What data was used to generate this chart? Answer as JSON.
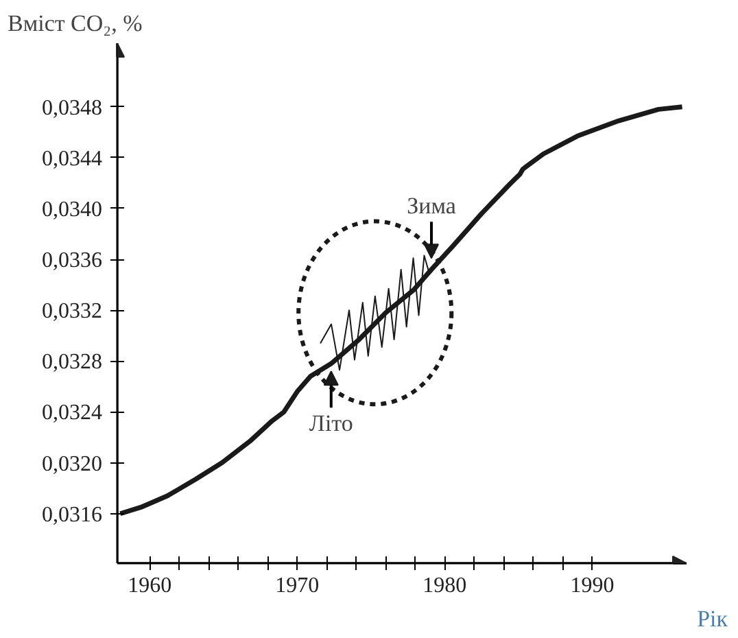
{
  "chart_data": {
    "type": "line",
    "ylabel": "Вміст CO₂, %",
    "xlabel": "Рік",
    "xlim": [
      1957.8,
      1996.4
    ],
    "ylim": [
      0.03121,
      0.0353
    ],
    "xticks": [
      1960,
      {
        "value": 1962,
        "label": null
      },
      {
        "value": 1964,
        "label": null
      },
      {
        "value": 1966,
        "label": null
      },
      {
        "value": 1968,
        "label": null
      },
      1970,
      {
        "value": 1972,
        "label": null
      },
      {
        "value": 1974,
        "label": null
      },
      {
        "value": 1976,
        "label": null
      },
      {
        "value": 1978,
        "label": null
      },
      1980,
      {
        "value": 1982,
        "label": null
      },
      {
        "value": 1984,
        "label": null
      },
      {
        "value": 1986,
        "label": null
      },
      {
        "value": 1988,
        "label": null
      },
      1990
    ],
    "yticks": [
      {
        "value": 0.0316,
        "label": "0,0316"
      },
      {
        "value": 0.032,
        "label": "0,0320"
      },
      {
        "value": 0.0324,
        "label": "0,0324"
      },
      {
        "value": 0.0328,
        "label": "0,0328"
      },
      {
        "value": 0.0332,
        "label": "0,0332"
      },
      {
        "value": 0.0336,
        "label": "0,0336"
      },
      {
        "value": 0.034,
        "label": "0,0340"
      },
      {
        "value": 0.0344,
        "label": "0,0344"
      },
      {
        "value": 0.0348,
        "label": "0,0348"
      }
    ],
    "grid": false,
    "marker": "none",
    "line_style": "solid",
    "series": [
      {
        "color": "#1a1a1a",
        "x": [
          1958.0,
          1959.4,
          1961.2,
          1963.1,
          1964.9,
          1966.8,
          1968.3,
          1969.1,
          1970.0,
          1970.9,
          1972.3,
          1974.2,
          1976.0,
          1977.9,
          1979.1,
          1980.6,
          1982.5,
          1984.4,
          1985.1,
          1985.3,
          1986.7,
          1989.0,
          1991.8,
          1994.5,
          1996.1
        ],
        "values": [
          0.0316,
          0.03165,
          0.03174,
          0.03187,
          0.032,
          0.03217,
          0.03233,
          0.0324,
          0.03256,
          0.03268,
          0.03278,
          0.03297,
          0.03318,
          0.03336,
          0.03352,
          0.03371,
          0.03396,
          0.03419,
          0.03427,
          0.03431,
          0.03443,
          0.03457,
          0.03469,
          0.03478,
          0.0348
        ]
      },
      {
        "color": "#1a1a1a",
        "x": [
          1971.57,
          1972.31,
          1972.87,
          1973.52,
          1973.89,
          1974.44,
          1974.81,
          1975.28,
          1975.74,
          1976.2,
          1976.57,
          1977.04,
          1977.41,
          1977.87,
          1978.24,
          1978.61,
          1978.98
        ],
        "values": [
          0.03294,
          0.03309,
          0.03273,
          0.0332,
          0.03281,
          0.03326,
          0.03284,
          0.03331,
          0.03291,
          0.03337,
          0.03297,
          0.03352,
          0.03307,
          0.03361,
          0.03316,
          0.03363,
          0.03348
        ]
      }
    ],
    "annotations": [
      {
        "text": "Зима",
        "x": 1979.1,
        "y": 0.03361
      },
      {
        "text": "Літо",
        "x": 1972.3,
        "y": 0.03272
      }
    ]
  }
}
